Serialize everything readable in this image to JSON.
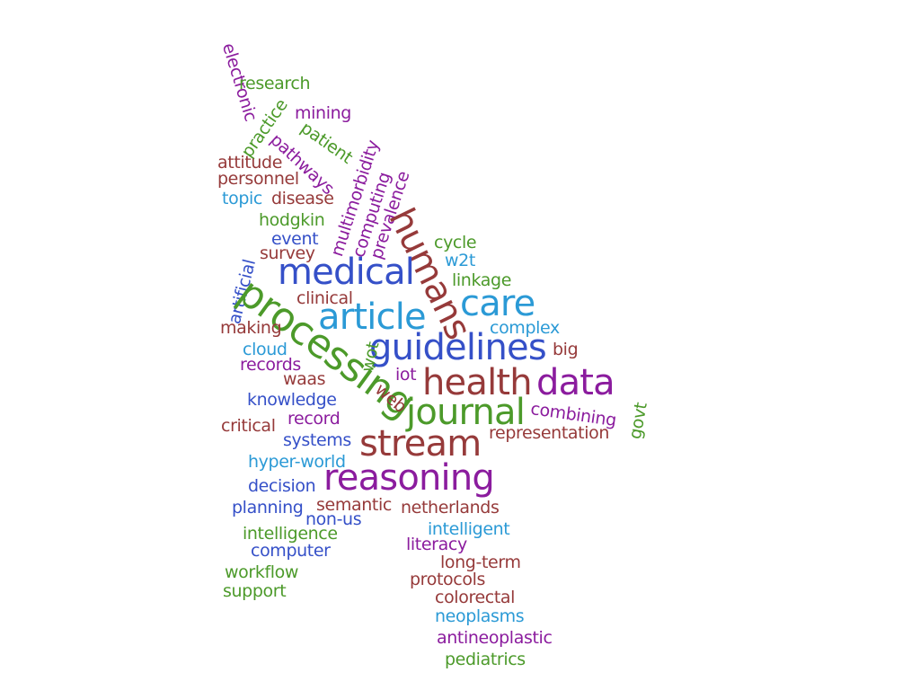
{
  "palette": {
    "green": "#4c9a2a",
    "purple": "#8b1c9e",
    "maroon": "#963a3a",
    "blue": "#3550c8",
    "cyan": "#2b9ad6"
  },
  "words": [
    {
      "text": "electronic",
      "color": "purple",
      "weight": 1
    },
    {
      "text": "research",
      "color": "green",
      "weight": 1
    },
    {
      "text": "practice",
      "color": "green",
      "weight": 1
    },
    {
      "text": "mining",
      "color": "purple",
      "weight": 1
    },
    {
      "text": "patient",
      "color": "green",
      "weight": 1
    },
    {
      "text": "pathways",
      "color": "purple",
      "weight": 1
    },
    {
      "text": "attitude",
      "color": "maroon",
      "weight": 1
    },
    {
      "text": "personnel",
      "color": "maroon",
      "weight": 1
    },
    {
      "text": "multimorbidity",
      "color": "purple",
      "weight": 1
    },
    {
      "text": "computing",
      "color": "purple",
      "weight": 1
    },
    {
      "text": "prevalence",
      "color": "purple",
      "weight": 1
    },
    {
      "text": "topic",
      "color": "cyan",
      "weight": 1
    },
    {
      "text": "disease",
      "color": "maroon",
      "weight": 1
    },
    {
      "text": "hodgkin",
      "color": "green",
      "weight": 1
    },
    {
      "text": "humans",
      "color": "maroon",
      "weight": 3
    },
    {
      "text": "event",
      "color": "blue",
      "weight": 1
    },
    {
      "text": "cycle",
      "color": "green",
      "weight": 1
    },
    {
      "text": "survey",
      "color": "maroon",
      "weight": 1
    },
    {
      "text": "w2t",
      "color": "cyan",
      "weight": 1
    },
    {
      "text": "artificial",
      "color": "blue",
      "weight": 1
    },
    {
      "text": "medical",
      "color": "blue",
      "weight": 3
    },
    {
      "text": "linkage",
      "color": "green",
      "weight": 1
    },
    {
      "text": "processing",
      "color": "green",
      "weight": 4
    },
    {
      "text": "care",
      "color": "cyan",
      "weight": 3
    },
    {
      "text": "clinical",
      "color": "maroon",
      "weight": 1
    },
    {
      "text": "article",
      "color": "cyan",
      "weight": 4
    },
    {
      "text": "making",
      "color": "maroon",
      "weight": 1
    },
    {
      "text": "complex",
      "color": "cyan",
      "weight": 1
    },
    {
      "text": "guidelines",
      "color": "blue",
      "weight": 4
    },
    {
      "text": "cloud",
      "color": "cyan",
      "weight": 1
    },
    {
      "text": "wot",
      "color": "green",
      "weight": 1
    },
    {
      "text": "big",
      "color": "maroon",
      "weight": 1
    },
    {
      "text": "records",
      "color": "purple",
      "weight": 1
    },
    {
      "text": "iot",
      "color": "purple",
      "weight": 1
    },
    {
      "text": "waas",
      "color": "maroon",
      "weight": 1
    },
    {
      "text": "health",
      "color": "maroon",
      "weight": 4
    },
    {
      "text": "data",
      "color": "purple",
      "weight": 4
    },
    {
      "text": "web",
      "color": "maroon",
      "weight": 1
    },
    {
      "text": "knowledge",
      "color": "blue",
      "weight": 1
    },
    {
      "text": "govt",
      "color": "green",
      "weight": 1
    },
    {
      "text": "combining",
      "color": "purple",
      "weight": 1
    },
    {
      "text": "journal",
      "color": "green",
      "weight": 4
    },
    {
      "text": "record",
      "color": "purple",
      "weight": 1
    },
    {
      "text": "critical",
      "color": "maroon",
      "weight": 1
    },
    {
      "text": "representation",
      "color": "maroon",
      "weight": 1
    },
    {
      "text": "stream",
      "color": "maroon",
      "weight": 4
    },
    {
      "text": "systems",
      "color": "blue",
      "weight": 1
    },
    {
      "text": "hyper-world",
      "color": "cyan",
      "weight": 1
    },
    {
      "text": "reasoning",
      "color": "purple",
      "weight": 4
    },
    {
      "text": "decision",
      "color": "blue",
      "weight": 1
    },
    {
      "text": "semantic",
      "color": "maroon",
      "weight": 1
    },
    {
      "text": "planning",
      "color": "blue",
      "weight": 1
    },
    {
      "text": "netherlands",
      "color": "maroon",
      "weight": 1
    },
    {
      "text": "non-us",
      "color": "blue",
      "weight": 1
    },
    {
      "text": "intelligent",
      "color": "cyan",
      "weight": 1
    },
    {
      "text": "intelligence",
      "color": "green",
      "weight": 1
    },
    {
      "text": "literacy",
      "color": "purple",
      "weight": 1
    },
    {
      "text": "computer",
      "color": "blue",
      "weight": 1
    },
    {
      "text": "long-term",
      "color": "maroon",
      "weight": 1
    },
    {
      "text": "workflow",
      "color": "green",
      "weight": 1
    },
    {
      "text": "protocols",
      "color": "maroon",
      "weight": 1
    },
    {
      "text": "support",
      "color": "green",
      "weight": 1
    },
    {
      "text": "colorectal",
      "color": "maroon",
      "weight": 1
    },
    {
      "text": "neoplasms",
      "color": "cyan",
      "weight": 1
    },
    {
      "text": "antineoplastic",
      "color": "purple",
      "weight": 1
    },
    {
      "text": "pediatrics",
      "color": "green",
      "weight": 1
    }
  ]
}
